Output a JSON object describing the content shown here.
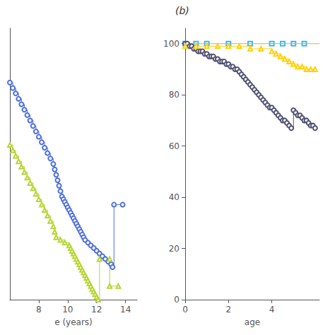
{
  "chart_data": [
    {
      "type": "line",
      "xlabel": "e (years)",
      "xlim": [
        6.0,
        14.8
      ],
      "ylim": [
        15,
        115
      ],
      "xticks": [
        8,
        10,
        12,
        14
      ],
      "yticks": [],
      "tick_labels": "x",
      "grid": false,
      "series": [
        {
          "marker": "circle",
          "line_style": "step",
          "x": [
            6.0,
            6.2,
            6.4,
            6.6,
            6.8,
            7.0,
            7.2,
            7.4,
            7.6,
            7.8,
            8.0,
            8.2,
            8.4,
            8.6,
            8.8,
            9.0,
            9.1,
            9.2,
            9.3,
            9.4,
            9.5,
            9.6,
            9.7,
            9.8,
            9.9,
            10.0,
            10.1,
            10.2,
            10.3,
            10.4,
            10.5,
            10.6,
            10.7,
            10.8,
            10.9,
            11.0,
            11.1,
            11.2,
            11.4,
            11.6,
            11.8,
            12.0,
            12.2,
            12.4,
            12.6,
            12.8,
            13.0,
            13.1,
            13.2,
            13.8
          ],
          "values": [
            95,
            93,
            91,
            89,
            87,
            85,
            83,
            81,
            79,
            77,
            75,
            73,
            71,
            69,
            67,
            65,
            63,
            61,
            59,
            57,
            55,
            53,
            52,
            51,
            50,
            49,
            48,
            47,
            46,
            45,
            44,
            43,
            42,
            41,
            40,
            39,
            38,
            37,
            36,
            35,
            34,
            33,
            32,
            31,
            30,
            29,
            28,
            27,
            50,
            50
          ]
        },
        {
          "marker": "triangle",
          "line_style": "step",
          "x": [
            6.0,
            6.2,
            6.4,
            6.6,
            6.8,
            7.0,
            7.2,
            7.4,
            7.6,
            7.8,
            8.0,
            8.2,
            8.4,
            8.6,
            8.8,
            9.0,
            9.1,
            9.2,
            9.5,
            9.8,
            10.1,
            10.2,
            10.3,
            10.4,
            10.5,
            10.6,
            10.7,
            10.8,
            10.9,
            11.0,
            11.1,
            11.2,
            11.3,
            11.4,
            11.5,
            11.6,
            11.7,
            11.8,
            11.9,
            12.0,
            12.1,
            12.2,
            12.9,
            12.9,
            13.5
          ],
          "values": [
            72,
            70,
            68,
            66,
            64,
            62,
            60,
            58,
            56,
            54,
            52,
            50,
            48,
            46,
            44,
            42,
            40,
            38,
            37,
            36,
            35,
            34,
            33,
            32,
            31,
            30,
            29,
            28,
            27,
            26,
            25,
            24,
            23,
            22,
            21,
            20,
            19,
            18,
            17,
            16,
            15,
            30,
            30,
            20,
            20
          ]
        }
      ]
    },
    {
      "type": "line",
      "xlabel": "age",
      "annotation": "(b)",
      "xlim": [
        0,
        6.2
      ],
      "ylim": [
        0,
        106
      ],
      "xticks": [
        0,
        2,
        4
      ],
      "yticks": [
        0,
        20,
        40,
        60,
        80,
        100
      ],
      "grid": false,
      "series": [
        {
          "marker": "circle",
          "line_style": "step",
          "x": [
            0.0,
            0.1,
            0.2,
            0.3,
            0.4,
            0.5,
            0.6,
            0.7,
            0.8,
            0.9,
            1.0,
            1.1,
            1.2,
            1.3,
            1.4,
            1.5,
            1.6,
            1.7,
            1.8,
            1.9,
            2.0,
            2.1,
            2.2,
            2.3,
            2.4,
            2.5,
            2.6,
            2.7,
            2.8,
            2.9,
            3.0,
            3.1,
            3.2,
            3.3,
            3.4,
            3.5,
            3.6,
            3.7,
            3.8,
            3.9,
            4.0,
            4.1,
            4.2,
            4.3,
            4.4,
            4.5,
            4.6,
            4.7,
            4.8,
            4.9,
            5.0,
            5.1,
            5.2,
            5.3,
            5.4,
            5.5,
            5.6,
            5.7,
            5.8,
            5.9,
            6.0
          ],
          "values": [
            100,
            100,
            99,
            99,
            98,
            98,
            97,
            97,
            97,
            96,
            96,
            95,
            95,
            95,
            94,
            94,
            93,
            93,
            93,
            92,
            92,
            91,
            91,
            90,
            90,
            89,
            88,
            87,
            86,
            85,
            84,
            83,
            82,
            81,
            80,
            79,
            78,
            77,
            76,
            75,
            75,
            74,
            73,
            72,
            71,
            70,
            70,
            69,
            68,
            67,
            74,
            73,
            72,
            72,
            71,
            70,
            70,
            69,
            68,
            68,
            67
          ]
        },
        {
          "type": "line",
          "marker": "none",
          "line_style": "solid",
          "x": [
            0,
            6.2
          ],
          "values": [
            100,
            100
          ]
        },
        {
          "type": "scatter",
          "marker": "square",
          "x": [
            0.0,
            0.5,
            1.0,
            2.0,
            3.0,
            4.0,
            4.5,
            5.0,
            5.5
          ],
          "values": [
            100,
            100,
            100,
            100,
            100,
            100,
            100,
            100,
            100
          ]
        },
        {
          "marker": "triangle",
          "line_style": "step",
          "x": [
            0.0,
            0.5,
            1.0,
            1.5,
            2.0,
            2.5,
            3.0,
            3.5,
            4.0,
            4.2,
            4.4,
            4.6,
            4.8,
            5.0,
            5.2,
            5.4,
            5.6,
            5.8,
            6.0
          ],
          "values": [
            99,
            99,
            99,
            99,
            99,
            99,
            98,
            98,
            97,
            96,
            95,
            94,
            93,
            92,
            91,
            91,
            90,
            90,
            90
          ]
        }
      ]
    }
  ]
}
